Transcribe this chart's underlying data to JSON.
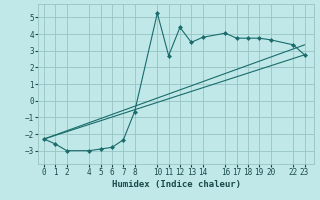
{
  "xlabel": "Humidex (Indice chaleur)",
  "bg_color": "#c0e8e8",
  "grid_color": "#98c4c4",
  "line_color": "#1a6b6b",
  "marker_color": "#1a6b6b",
  "series1_x": [
    0,
    1,
    2,
    4,
    5,
    6,
    7,
    8,
    10,
    11,
    12,
    13,
    14,
    16,
    17,
    18,
    19,
    20,
    22,
    23
  ],
  "series1_y": [
    -2.3,
    -2.6,
    -3.0,
    -3.0,
    -2.9,
    -2.8,
    -2.35,
    -0.65,
    5.25,
    2.7,
    4.4,
    3.5,
    3.8,
    4.05,
    3.75,
    3.75,
    3.75,
    3.65,
    3.35,
    2.75
  ],
  "line2_x": [
    0,
    23
  ],
  "line2_y": [
    -2.3,
    3.35
  ],
  "line3_x": [
    0,
    23
  ],
  "line3_y": [
    -2.3,
    2.75
  ],
  "xlim": [
    -0.5,
    23.8
  ],
  "ylim": [
    -3.8,
    5.8
  ],
  "xticks": [
    0,
    1,
    2,
    4,
    5,
    6,
    7,
    8,
    10,
    11,
    12,
    13,
    14,
    16,
    17,
    18,
    19,
    20,
    22,
    23
  ],
  "yticks": [
    -3,
    -2,
    -1,
    0,
    1,
    2,
    3,
    4,
    5
  ]
}
